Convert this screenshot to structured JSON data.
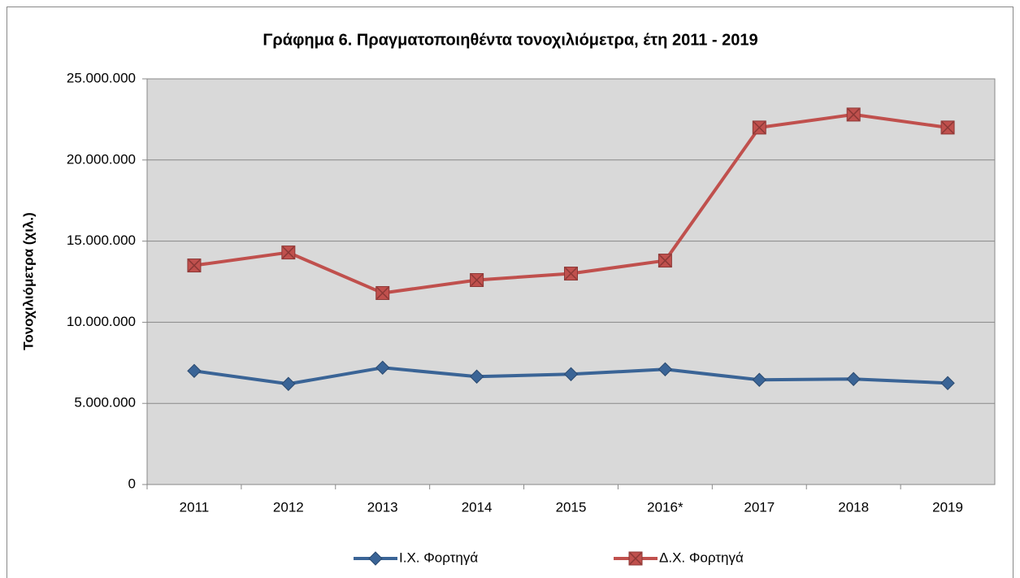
{
  "chart_data": {
    "type": "line",
    "title": "Γράφημα 6. Πραγματοποιηθέντα τονοχιλιόμετρα, έτη 2011 - 2019",
    "y_label": "Τονοχιλιόμετρα (χιλ.)",
    "categories": [
      "2011",
      "2012",
      "2013",
      "2014",
      "2015",
      "2016*",
      "2017",
      "2018",
      "2019"
    ],
    "series": [
      {
        "name": "Ι.Χ. Φορτηγά",
        "color": "#3a6496",
        "marker": "diamond",
        "values": [
          7000000,
          6200000,
          7200000,
          6650000,
          6800000,
          7100000,
          6450000,
          6500000,
          6250000
        ]
      },
      {
        "name": "Δ.Χ. Φορτηγά",
        "color": "#c0504d",
        "marker": "square",
        "values": [
          13500000,
          14300000,
          11800000,
          12600000,
          13000000,
          13800000,
          22000000,
          22800000,
          22000000
        ]
      }
    ],
    "ylim": [
      0,
      25000000
    ],
    "yticks": [
      0,
      {
        "value": 5000000,
        "label": "5.000.000"
      },
      {
        "value": 10000000,
        "label": "10.000.000"
      },
      {
        "value": 15000000,
        "label": "15.000.000"
      },
      {
        "value": 20000000,
        "label": "20.000.000"
      },
      {
        "value": 25000000,
        "label": "25.000.000"
      }
    ],
    "grid": true,
    "legend": "bottom"
  }
}
